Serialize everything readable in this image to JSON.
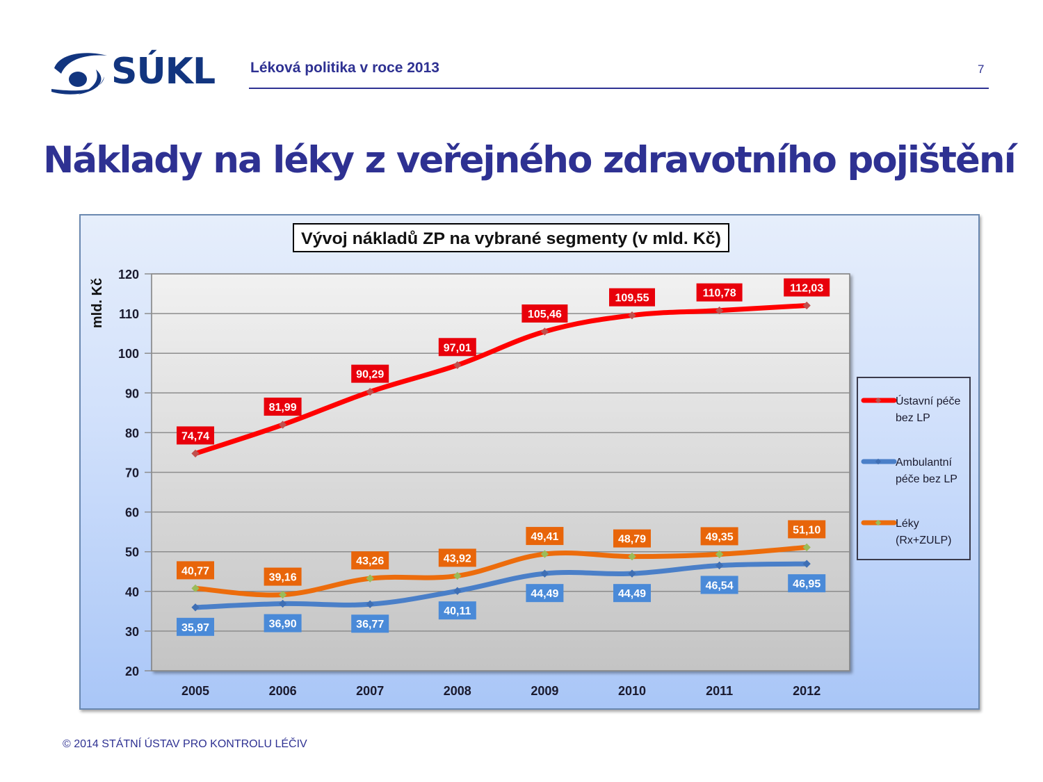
{
  "header": {
    "logo_text": "SÚKL",
    "title": "Léková politika v roce 2013",
    "page_number": "7"
  },
  "slide": {
    "title": "Náklady na léky z veřejného zdravotního pojištění"
  },
  "footer": {
    "text": "© 2014  STÁTNÍ ÚSTAV PRO KONTROLU LÉČIV"
  },
  "colors": {
    "brand_blue": "#12357f",
    "title_blue": "#2e3192",
    "series_red": "#ff0000",
    "series_blue": "#4a7fc8",
    "series_orange": "#ec6c0c",
    "label_red": "#e8000b",
    "label_blue": "#4a8ad8",
    "label_orange": "#e8650a"
  },
  "chart_data": {
    "type": "line",
    "title": "Vývoj nákladů ZP na vybrané segmenty (v mld. Kč)",
    "xlabel": "",
    "ylabel": "mld. Kč",
    "ylim": [
      20,
      120
    ],
    "yticks": [
      "20",
      "30",
      "40",
      "50",
      "60",
      "70",
      "80",
      "90",
      "100",
      "110",
      "120"
    ],
    "grid": true,
    "legend_position": "right",
    "categories": [
      "2005",
      "2006",
      "2007",
      "2008",
      "2009",
      "2010",
      "2011",
      "2012"
    ],
    "series": [
      {
        "name": "Ústavní péče bez LP",
        "legend_lines": [
          "Ústavní péče",
          "bez LP"
        ],
        "color": "#ff0000",
        "values": [
          74.74,
          81.99,
          90.29,
          97.01,
          105.46,
          109.55,
          110.78,
          112.03
        ],
        "labels": [
          "74,74",
          "81,99",
          "90,29",
          "97,01",
          "105,46",
          "109,55",
          "110,78",
          "112,03"
        ]
      },
      {
        "name": "Ambulantní péče bez LP",
        "legend_lines": [
          "Ambulantní",
          "péče bez LP"
        ],
        "color": "#4a7fc8",
        "values": [
          35.97,
          36.9,
          36.77,
          40.11,
          44.49,
          44.49,
          46.54,
          46.95
        ],
        "labels": [
          "35,97",
          "36,90",
          "36,77",
          "40,11",
          "44,49",
          "44,49",
          "46,54",
          "46,95"
        ]
      },
      {
        "name": "Léky (Rx+ZULP)",
        "legend_lines": [
          "Léky",
          "(Rx+ZULP)"
        ],
        "color": "#ec6c0c",
        "values": [
          40.77,
          39.16,
          43.26,
          43.92,
          49.41,
          48.79,
          49.35,
          51.1
        ],
        "labels": [
          "40,77",
          "39,16",
          "43,26",
          "43,92",
          "49,41",
          "48,79",
          "49,35",
          "51,10"
        ]
      }
    ]
  }
}
